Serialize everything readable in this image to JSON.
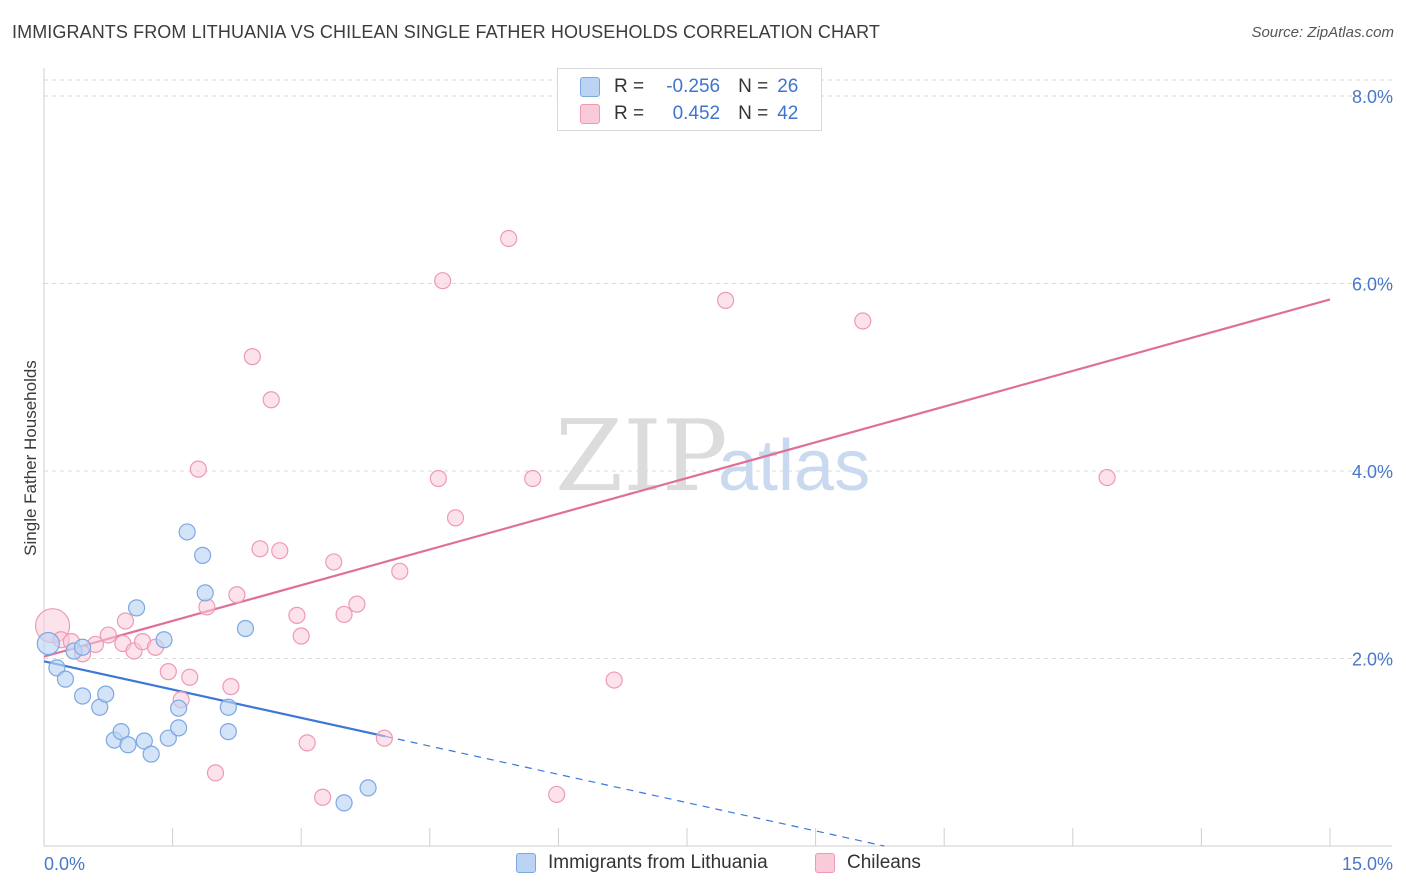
{
  "title": "IMMIGRANTS FROM LITHUANIA VS CHILEAN SINGLE FATHER HOUSEHOLDS CORRELATION CHART",
  "source": "Source: ZipAtlas.com",
  "watermark": {
    "part1": "ZIP",
    "part2": "atlas"
  },
  "legend": {
    "r_label": "R =",
    "n_label": "N =",
    "rows": [
      {
        "name": "Immigrants from Lithuania",
        "r": "-0.256",
        "n": "26",
        "fill": "#bcd4f4",
        "stroke": "#7ea8e2"
      },
      {
        "name": "Chileans",
        "r": "0.452",
        "n": "42",
        "fill": "#f9cad8",
        "stroke": "#ee9ab5"
      }
    ]
  },
  "colors": {
    "blue_line": "#3b78d8",
    "pink_line": "#e07098",
    "tick_text": "#4a78c8",
    "grid": "#d9d9d9"
  },
  "chart_data": {
    "type": "scatter",
    "xlabel": "",
    "ylabel": "Single Father Households",
    "xlim": [
      0,
      15
    ],
    "ylim": [
      0,
      8
    ],
    "x_tick_labels": [
      "0.0%",
      "15.0%"
    ],
    "y_ticks": [
      2,
      4,
      6,
      8
    ],
    "y_tick_labels": [
      "2.0%",
      "4.0%",
      "6.0%",
      "8.0%"
    ],
    "series": [
      {
        "name": "Immigrants from Lithuania",
        "points": [
          [
            0.05,
            2.16
          ],
          [
            0.15,
            1.9
          ],
          [
            0.25,
            1.78
          ],
          [
            0.35,
            2.08
          ],
          [
            0.45,
            2.12
          ],
          [
            0.45,
            1.6
          ],
          [
            0.65,
            1.48
          ],
          [
            0.72,
            1.62
          ],
          [
            0.82,
            1.13
          ],
          [
            0.9,
            1.22
          ],
          [
            0.98,
            1.08
          ],
          [
            1.08,
            2.54
          ],
          [
            1.17,
            1.12
          ],
          [
            1.25,
            0.98
          ],
          [
            1.4,
            2.2
          ],
          [
            1.45,
            1.15
          ],
          [
            1.57,
            1.26
          ],
          [
            1.57,
            1.47
          ],
          [
            1.67,
            3.35
          ],
          [
            1.85,
            3.1
          ],
          [
            1.88,
            2.7
          ],
          [
            2.15,
            1.48
          ],
          [
            2.15,
            1.22
          ],
          [
            2.35,
            2.32
          ],
          [
            3.5,
            0.46
          ],
          [
            3.78,
            0.62
          ]
        ],
        "trend": {
          "x": [
            0,
            3.98
          ],
          "y": [
            1.97,
            1.17
          ],
          "dashed_to": [
            9.8,
            0
          ]
        }
      },
      {
        "name": "Chileans",
        "points": [
          [
            0.1,
            2.35
          ],
          [
            0.2,
            2.2
          ],
          [
            0.32,
            2.18
          ],
          [
            0.45,
            2.05
          ],
          [
            0.6,
            2.15
          ],
          [
            0.75,
            2.25
          ],
          [
            0.92,
            2.16
          ],
          [
            0.95,
            2.4
          ],
          [
            1.05,
            2.08
          ],
          [
            1.15,
            2.18
          ],
          [
            1.3,
            2.12
          ],
          [
            1.45,
            1.86
          ],
          [
            1.6,
            1.56
          ],
          [
            1.7,
            1.8
          ],
          [
            1.8,
            4.02
          ],
          [
            1.9,
            2.55
          ],
          [
            2.0,
            0.78
          ],
          [
            2.18,
            1.7
          ],
          [
            2.25,
            2.68
          ],
          [
            2.43,
            5.22
          ],
          [
            2.52,
            3.17
          ],
          [
            2.65,
            4.76
          ],
          [
            2.75,
            3.15
          ],
          [
            2.95,
            2.46
          ],
          [
            3.0,
            2.24
          ],
          [
            3.07,
            1.1
          ],
          [
            3.25,
            0.52
          ],
          [
            3.38,
            3.03
          ],
          [
            3.5,
            2.47
          ],
          [
            3.65,
            2.58
          ],
          [
            3.97,
            1.15
          ],
          [
            4.15,
            2.93
          ],
          [
            4.65,
            6.03
          ],
          [
            4.6,
            3.92
          ],
          [
            4.8,
            3.5
          ],
          [
            5.42,
            6.48
          ],
          [
            5.7,
            3.92
          ],
          [
            5.98,
            0.55
          ],
          [
            6.65,
            1.77
          ],
          [
            7.95,
            5.82
          ],
          [
            9.55,
            5.6
          ],
          [
            12.4,
            3.93
          ]
        ],
        "trend": {
          "x": [
            0,
            15
          ],
          "y": [
            2.02,
            5.83
          ]
        }
      }
    ]
  }
}
